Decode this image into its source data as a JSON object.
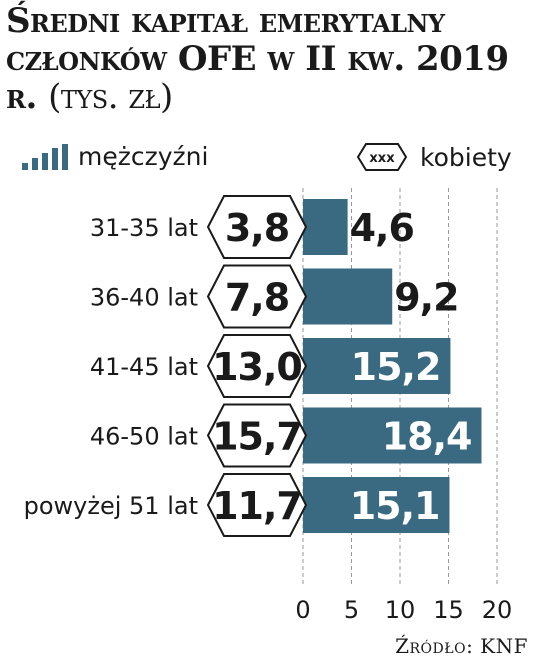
{
  "title": {
    "main": "Średni kapitał emerytalny członków OFE w II kw. 2019 r.",
    "unit": "(tys. zł)"
  },
  "legend": {
    "men_label": "mężczyźni",
    "women_label": "kobiety",
    "women_icon_text": "xxx"
  },
  "source": "Źródło: KNF",
  "colors": {
    "bar": "#3a6a82",
    "text": "#1a1a1a",
    "inside_label": "#ffffff"
  },
  "chart_data": {
    "type": "bar",
    "orientation": "horizontal",
    "categories": [
      "31-35 lat",
      "36-40 lat",
      "41-45 lat",
      "46-50 lat",
      "powyżej 51 lat"
    ],
    "series": [
      {
        "name": "mężczyźni",
        "values": [
          4.6,
          9.2,
          15.2,
          18.4,
          15.1
        ]
      },
      {
        "name": "kobiety",
        "values": [
          3.8,
          7.8,
          13.0,
          15.7,
          11.7
        ]
      }
    ],
    "value_labels_men": [
      "4,6",
      "9,2",
      "15,2",
      "18,4",
      "15,1"
    ],
    "value_labels_women": [
      "3,8",
      "7,8",
      "13,0",
      "15,7",
      "11,7"
    ],
    "x_ticks": [
      "0",
      "5",
      "10",
      "15",
      "20"
    ],
    "xlim": [
      0,
      20
    ],
    "grid": true
  }
}
